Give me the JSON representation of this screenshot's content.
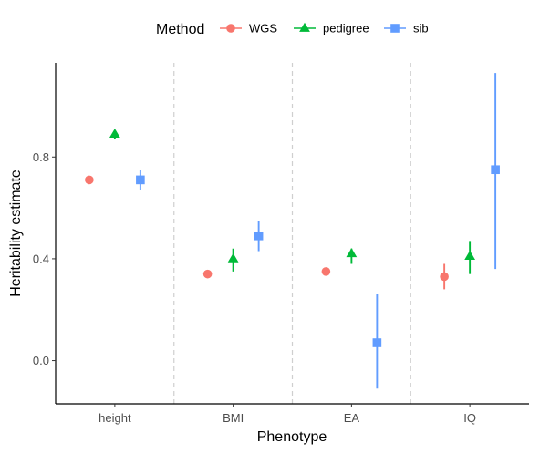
{
  "chart_data": {
    "type": "scatter",
    "subtype": "point-range",
    "xlabel": "Phenotype",
    "ylabel": "Heritability estimate",
    "categories": [
      "height",
      "BMI",
      "EA",
      "IQ"
    ],
    "yticks": [
      "0.0",
      "0.4",
      "0.8"
    ],
    "ylim": [
      -0.17,
      1.17
    ],
    "grid": false,
    "category_separators": true,
    "legend": {
      "title": "Method",
      "position": "top"
    },
    "series": [
      {
        "name": "WGS",
        "color": "#F8766D",
        "marker": "circle",
        "values": [
          0.71,
          0.34,
          0.35,
          0.33
        ],
        "lower": [
          null,
          null,
          null,
          0.28
        ],
        "upper": [
          null,
          null,
          null,
          0.38
        ]
      },
      {
        "name": "pedigree",
        "color": "#00BA38",
        "marker": "triangle",
        "values": [
          0.89,
          0.4,
          0.42,
          0.41
        ],
        "lower": [
          0.87,
          0.35,
          0.38,
          0.34
        ],
        "upper": [
          0.9,
          0.44,
          0.44,
          0.47
        ]
      },
      {
        "name": "sib",
        "color": "#619CFF",
        "marker": "square",
        "values": [
          0.71,
          0.49,
          0.07,
          0.75
        ],
        "lower": [
          0.67,
          0.43,
          -0.11,
          0.36
        ],
        "upper": [
          0.75,
          0.55,
          0.26,
          1.13
        ]
      }
    ]
  }
}
